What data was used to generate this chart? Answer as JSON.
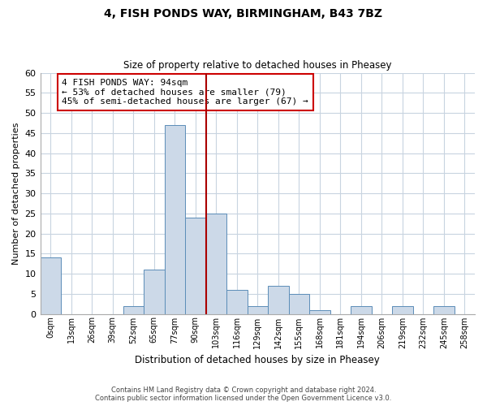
{
  "title": "4, FISH PONDS WAY, BIRMINGHAM, B43 7BZ",
  "subtitle": "Size of property relative to detached houses in Pheasey",
  "xlabel": "Distribution of detached houses by size in Pheasey",
  "ylabel": "Number of detached properties",
  "bin_labels": [
    "0sqm",
    "13sqm",
    "26sqm",
    "39sqm",
    "52sqm",
    "65sqm",
    "77sqm",
    "90sqm",
    "103sqm",
    "116sqm",
    "129sqm",
    "142sqm",
    "155sqm",
    "168sqm",
    "181sqm",
    "194sqm",
    "206sqm",
    "219sqm",
    "232sqm",
    "245sqm",
    "258sqm"
  ],
  "bar_heights": [
    14,
    0,
    0,
    0,
    2,
    11,
    47,
    24,
    25,
    6,
    2,
    7,
    5,
    1,
    0,
    2,
    0,
    2,
    0,
    2,
    0
  ],
  "bar_color": "#ccd9e8",
  "bar_edge_color": "#5b8db8",
  "vline_x": 7.5,
  "vline_color": "#aa0000",
  "annotation_text": "4 FISH PONDS WAY: 94sqm\n← 53% of detached houses are smaller (79)\n45% of semi-detached houses are larger (67) →",
  "annotation_box_color": "#ffffff",
  "annotation_box_edge": "#cc0000",
  "ylim": [
    0,
    60
  ],
  "yticks": [
    0,
    5,
    10,
    15,
    20,
    25,
    30,
    35,
    40,
    45,
    50,
    55,
    60
  ],
  "footer_line1": "Contains HM Land Registry data © Crown copyright and database right 2024.",
  "footer_line2": "Contains public sector information licensed under the Open Government Licence v3.0.",
  "background_color": "#ffffff",
  "grid_color": "#c8d4e0"
}
